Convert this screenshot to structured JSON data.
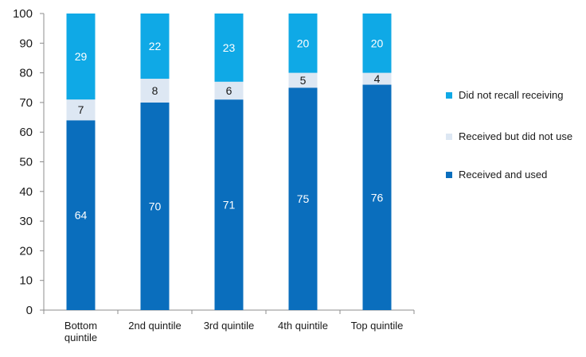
{
  "chart_data": {
    "type": "bar",
    "stacked": true,
    "categories": [
      "Bottom quintile",
      "2nd quintile",
      "3rd quintile",
      "4th quintile",
      "Top quintile"
    ],
    "category_lines": [
      [
        "Bottom",
        "quintile"
      ],
      [
        "2nd quintile"
      ],
      [
        "3rd quintile"
      ],
      [
        "4th quintile"
      ],
      [
        "Top quintile"
      ]
    ],
    "series": [
      {
        "name": "Received and used",
        "color": "#0a6ebd",
        "label_color": "#ffffff",
        "values": [
          64,
          70,
          71,
          75,
          76
        ]
      },
      {
        "name": "Received but did not use",
        "color": "#dde7f3",
        "label_color": "#1a1a1a",
        "values": [
          7,
          8,
          6,
          5,
          4
        ]
      },
      {
        "name": "Did not recall receiving",
        "color": "#0fa9e6",
        "label_color": "#ffffff",
        "values": [
          29,
          22,
          23,
          20,
          20
        ]
      }
    ],
    "yticks": [
      0,
      10,
      20,
      30,
      40,
      50,
      60,
      70,
      80,
      90,
      100
    ],
    "ylim": [
      0,
      100
    ],
    "grid": false,
    "legend_position": "right",
    "legend_order": [
      "Did not recall receiving",
      "Received but did not use",
      "Received and used"
    ]
  }
}
